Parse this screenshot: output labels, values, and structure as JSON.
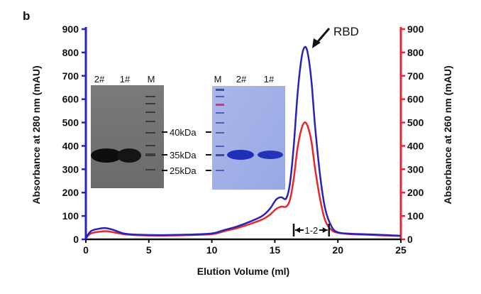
{
  "panel_label": "b",
  "chart_data": {
    "type": "line",
    "xlabel": "Elution Volume (ml)",
    "ylabel_left": "Absorbance at 280 nm (mAU)",
    "ylabel_right": "Absorbance at 260 nm (mAU)",
    "xlim": [
      0,
      25
    ],
    "ylim": [
      0,
      900
    ],
    "x_ticks": [
      "0",
      "5",
      "10",
      "15",
      "20",
      "25"
    ],
    "y_ticks": [
      "0",
      "100",
      "200",
      "300",
      "400",
      "500",
      "600",
      "700",
      "800",
      "900"
    ],
    "colors": {
      "a280": "#2a22b8",
      "a260": "#e8262b",
      "left_axis": "#2a22c8",
      "right_axis": "#e8263a"
    },
    "series": [
      {
        "key": "a280",
        "x": [
          0,
          0.4,
          1.0,
          1.6,
          2.2,
          3,
          4,
          6,
          8,
          10,
          11,
          12,
          13,
          14,
          14.6,
          15.1,
          15.5,
          15.9,
          16.2,
          16.5,
          16.8,
          17.1,
          17.35,
          17.6,
          17.9,
          18.2,
          18.6,
          19.0,
          19.5,
          20,
          21,
          22,
          23,
          24,
          25
        ],
        "y": [
          5,
          35,
          45,
          48,
          40,
          25,
          20,
          18,
          20,
          25,
          40,
          55,
          75,
          100,
          130,
          170,
          180,
          175,
          240,
          400,
          620,
          770,
          822,
          800,
          680,
          480,
          270,
          130,
          55,
          30,
          24,
          22,
          20,
          18,
          15
        ]
      },
      {
        "key": "a260",
        "x": [
          0,
          0.4,
          1.0,
          1.6,
          2.2,
          3,
          4,
          6,
          8,
          10,
          11,
          12,
          13,
          14,
          14.6,
          15.1,
          15.5,
          15.9,
          16.2,
          16.5,
          16.8,
          17.1,
          17.35,
          17.6,
          17.9,
          18.2,
          18.6,
          19.0,
          19.5,
          20,
          21,
          22,
          23,
          24,
          25
        ],
        "y": [
          5,
          25,
          32,
          35,
          30,
          22,
          18,
          16,
          18,
          22,
          35,
          48,
          65,
          85,
          105,
          130,
          140,
          140,
          170,
          260,
          390,
          470,
          500,
          485,
          420,
          300,
          170,
          80,
          40,
          28,
          22,
          20,
          18,
          16,
          14
        ]
      }
    ],
    "annotations": {
      "peak_label": "RBD",
      "fraction_label": "1-2",
      "fraction_range": [
        16.5,
        19.3
      ],
      "gel_left": {
        "lanes": [
          "2#",
          "1#",
          "M"
        ]
      },
      "gel_right": {
        "lanes": [
          "M",
          "2#",
          "1#"
        ]
      },
      "markers": [
        "40",
        "35",
        "25"
      ],
      "marker_unit": "kDa"
    }
  }
}
